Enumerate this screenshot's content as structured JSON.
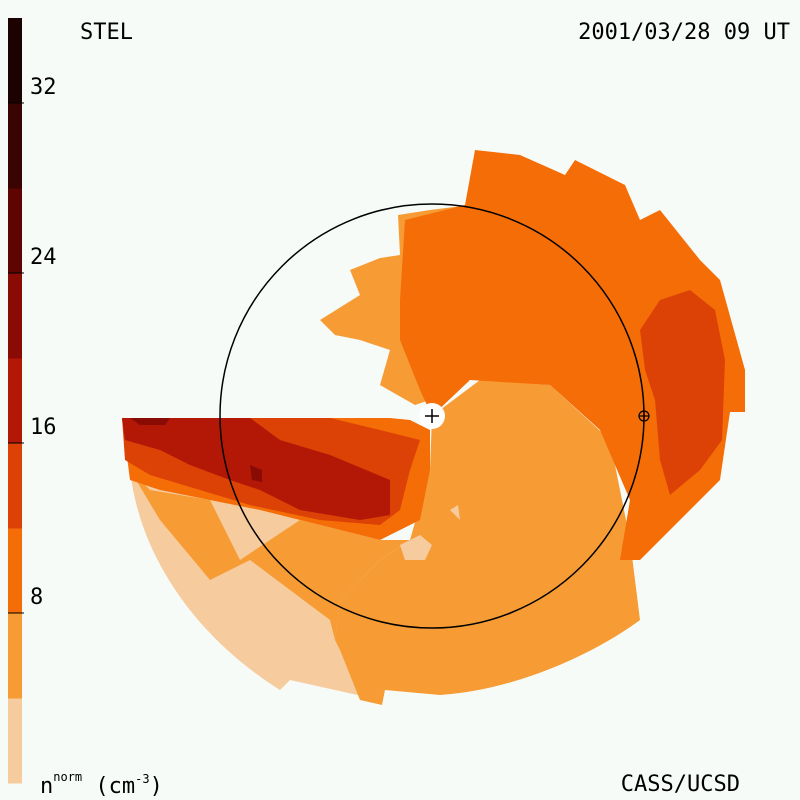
{
  "header": {
    "station": "STEL",
    "timestamp": "2001/03/28 09 UT"
  },
  "footer": {
    "credit": "CASS/UCSD",
    "unit_symbol": "n",
    "unit_superscript": "norm",
    "unit_paren": "(cm",
    "unit_exponent": "-3",
    "unit_close": ")"
  },
  "chart_data": {
    "type": "heatmap",
    "title": "",
    "colorbar": {
      "ticks": [
        {
          "value": 8,
          "label": "8"
        },
        {
          "value": 16,
          "label": "16"
        },
        {
          "value": 24,
          "label": "24"
        },
        {
          "value": 32,
          "label": "32"
        }
      ],
      "range": [
        0,
        36
      ],
      "levels": [
        {
          "min": 0,
          "max": 4,
          "color": "#f6cc9e"
        },
        {
          "min": 4,
          "max": 8,
          "color": "#f79c35"
        },
        {
          "min": 8,
          "max": 12,
          "color": "#f56d06"
        },
        {
          "min": 12,
          "max": 16,
          "color": "#dc4205"
        },
        {
          "min": 16,
          "max": 20,
          "color": "#b31706"
        },
        {
          "min": 20,
          "max": 24,
          "color": "#8a0a04"
        },
        {
          "min": 24,
          "max": 28,
          "color": "#5e0503"
        },
        {
          "min": 28,
          "max": 32,
          "color": "#390402"
        },
        {
          "min": 32,
          "max": 36,
          "color": "#1c0201"
        }
      ]
    },
    "markers": [
      "sun-marker",
      "earth-marker",
      "earth-orbit"
    ]
  }
}
